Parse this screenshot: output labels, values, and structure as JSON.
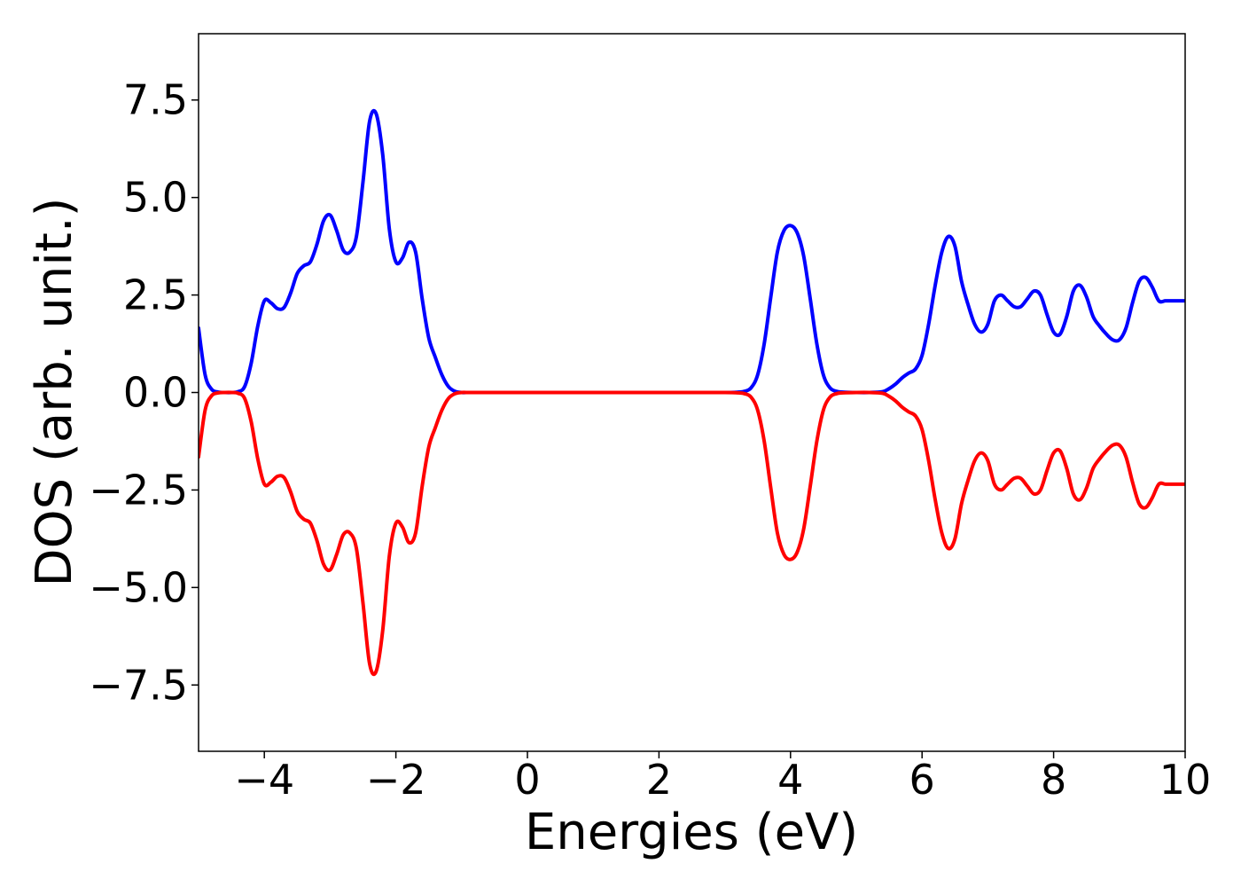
{
  "chart_data": {
    "type": "line",
    "title": "",
    "xlabel": "Energies (eV)",
    "ylabel": "DOS (arb. unit.)",
    "xlim": [
      -5,
      10
    ],
    "ylim": [
      -9.2,
      9.2
    ],
    "grid": false,
    "xticks": [
      -4,
      -2,
      0,
      2,
      4,
      6,
      8,
      10
    ],
    "xtick_labels": [
      "−4",
      "−2",
      "0",
      "2",
      "4",
      "6",
      "8",
      "10"
    ],
    "yticks": [
      7.5,
      5.0,
      2.5,
      0.0,
      -2.5,
      -5.0,
      -7.5
    ],
    "ytick_labels": [
      "7.5",
      "5.0",
      "2.5",
      "0.0",
      "−2.5",
      "−5.0",
      "−7.5"
    ],
    "series": [
      {
        "color": "#0000ff",
        "x": [
          -5.0,
          -4.9,
          -4.8,
          -4.7,
          -4.6,
          -4.5,
          -4.4,
          -4.3,
          -4.2,
          -4.1,
          -4.0,
          -3.9,
          -3.8,
          -3.7,
          -3.6,
          -3.5,
          -3.4,
          -3.3,
          -3.2,
          -3.1,
          -3.0,
          -2.9,
          -2.8,
          -2.7,
          -2.6,
          -2.5,
          -2.4,
          -2.3,
          -2.2,
          -2.1,
          -2.0,
          -1.9,
          -1.8,
          -1.7,
          -1.6,
          -1.5,
          -1.4,
          -1.3,
          -1.2,
          -1.1,
          -1.0,
          -0.9,
          -0.8,
          -0.7,
          -0.6,
          -0.5,
          0.0,
          1.0,
          2.0,
          3.0,
          3.2,
          3.3,
          3.4,
          3.5,
          3.6,
          3.7,
          3.8,
          3.9,
          4.0,
          4.1,
          4.2,
          4.3,
          4.4,
          4.5,
          4.6,
          4.7,
          4.8,
          5.0,
          5.2,
          5.4,
          5.5,
          5.6,
          5.7,
          5.8,
          5.9,
          6.0,
          6.1,
          6.2,
          6.3,
          6.4,
          6.5,
          6.6,
          6.7,
          6.8,
          6.9,
          7.0,
          7.1,
          7.2,
          7.3,
          7.4,
          7.5,
          7.6,
          7.7,
          7.8,
          7.9,
          8.0,
          8.1,
          8.2,
          8.3,
          8.4,
          8.5,
          8.6,
          8.7,
          8.8,
          8.9,
          9.0,
          9.1,
          9.2,
          9.3,
          9.4,
          9.5,
          9.6,
          9.7,
          9.8,
          9.9,
          10.0
        ],
        "y": [
          1.65,
          0.45,
          0.08,
          0.01,
          0.0,
          0.0,
          0.02,
          0.15,
          0.75,
          1.7,
          2.35,
          2.3,
          2.15,
          2.18,
          2.55,
          3.05,
          3.25,
          3.35,
          3.8,
          4.4,
          4.55,
          4.15,
          3.65,
          3.6,
          4.0,
          5.4,
          6.95,
          7.15,
          6.1,
          4.2,
          3.35,
          3.45,
          3.85,
          3.6,
          2.4,
          1.4,
          0.9,
          0.45,
          0.15,
          0.03,
          0.0,
          0.0,
          0.0,
          0.0,
          0.0,
          0.0,
          0.0,
          0.0,
          0.0,
          0.0,
          0.01,
          0.03,
          0.12,
          0.45,
          1.25,
          2.45,
          3.6,
          4.15,
          4.28,
          4.1,
          3.5,
          2.4,
          1.25,
          0.45,
          0.12,
          0.03,
          0.01,
          0.0,
          0.0,
          0.02,
          0.1,
          0.22,
          0.38,
          0.5,
          0.6,
          0.95,
          1.75,
          2.75,
          3.6,
          4.0,
          3.75,
          2.85,
          2.25,
          1.75,
          1.55,
          1.75,
          2.35,
          2.5,
          2.35,
          2.2,
          2.2,
          2.4,
          2.6,
          2.5,
          2.0,
          1.55,
          1.5,
          1.95,
          2.6,
          2.75,
          2.45,
          1.95,
          1.7,
          1.5,
          1.35,
          1.35,
          1.65,
          2.3,
          2.85,
          2.95,
          2.7,
          2.35,
          2.35,
          2.35,
          2.35,
          2.35
        ]
      },
      {
        "color": "#ff0000",
        "x": [
          -5.0,
          -4.9,
          -4.8,
          -4.7,
          -4.6,
          -4.5,
          -4.4,
          -4.3,
          -4.2,
          -4.1,
          -4.0,
          -3.9,
          -3.8,
          -3.7,
          -3.6,
          -3.5,
          -3.4,
          -3.3,
          -3.2,
          -3.1,
          -3.0,
          -2.9,
          -2.8,
          -2.7,
          -2.6,
          -2.5,
          -2.4,
          -2.3,
          -2.2,
          -2.1,
          -2.0,
          -1.9,
          -1.8,
          -1.7,
          -1.6,
          -1.5,
          -1.4,
          -1.3,
          -1.2,
          -1.1,
          -1.0,
          -0.9,
          -0.8,
          -0.7,
          -0.6,
          -0.5,
          0.0,
          1.0,
          2.0,
          3.0,
          3.2,
          3.3,
          3.4,
          3.5,
          3.6,
          3.7,
          3.8,
          3.9,
          4.0,
          4.1,
          4.2,
          4.3,
          4.4,
          4.5,
          4.6,
          4.7,
          4.8,
          5.0,
          5.2,
          5.4,
          5.5,
          5.6,
          5.7,
          5.8,
          5.9,
          6.0,
          6.1,
          6.2,
          6.3,
          6.4,
          6.5,
          6.6,
          6.7,
          6.8,
          6.9,
          7.0,
          7.1,
          7.2,
          7.3,
          7.4,
          7.5,
          7.6,
          7.7,
          7.8,
          7.9,
          8.0,
          8.1,
          8.2,
          8.3,
          8.4,
          8.5,
          8.6,
          8.7,
          8.8,
          8.9,
          9.0,
          9.1,
          9.2,
          9.3,
          9.4,
          9.5,
          9.6,
          9.7,
          9.8,
          9.9,
          10.0
        ],
        "y": [
          -1.65,
          -0.45,
          -0.08,
          -0.01,
          0.0,
          0.0,
          -0.02,
          -0.15,
          -0.75,
          -1.7,
          -2.35,
          -2.3,
          -2.15,
          -2.18,
          -2.55,
          -3.05,
          -3.25,
          -3.35,
          -3.8,
          -4.4,
          -4.55,
          -4.15,
          -3.65,
          -3.6,
          -4.0,
          -5.4,
          -6.95,
          -7.15,
          -6.1,
          -4.2,
          -3.35,
          -3.45,
          -3.85,
          -3.6,
          -2.4,
          -1.4,
          -0.9,
          -0.45,
          -0.15,
          -0.03,
          0.0,
          0.0,
          0.0,
          0.0,
          0.0,
          0.0,
          0.0,
          0.0,
          0.0,
          0.0,
          -0.01,
          -0.03,
          -0.12,
          -0.45,
          -1.25,
          -2.45,
          -3.6,
          -4.15,
          -4.28,
          -4.1,
          -3.5,
          -2.4,
          -1.25,
          -0.45,
          -0.12,
          -0.03,
          -0.01,
          0.0,
          0.0,
          -0.02,
          -0.1,
          -0.22,
          -0.38,
          -0.5,
          -0.6,
          -0.95,
          -1.75,
          -2.75,
          -3.6,
          -4.0,
          -3.75,
          -2.85,
          -2.25,
          -1.75,
          -1.55,
          -1.75,
          -2.35,
          -2.5,
          -2.35,
          -2.2,
          -2.2,
          -2.4,
          -2.6,
          -2.5,
          -2.0,
          -1.55,
          -1.5,
          -1.95,
          -2.6,
          -2.75,
          -2.45,
          -1.95,
          -1.7,
          -1.5,
          -1.35,
          -1.35,
          -1.65,
          -2.3,
          -2.85,
          -2.95,
          -2.7,
          -2.35,
          -2.35,
          -2.35,
          -2.35,
          -2.35
        ]
      }
    ]
  }
}
